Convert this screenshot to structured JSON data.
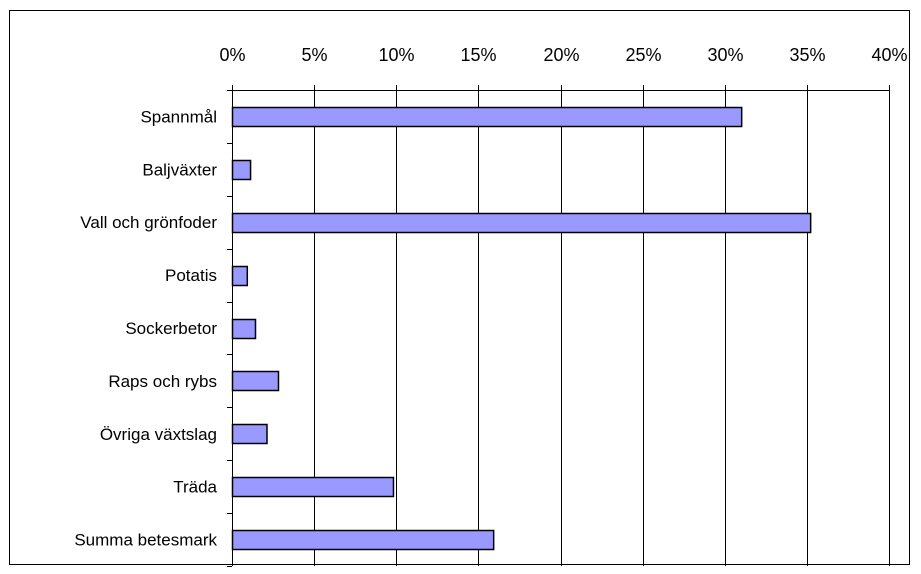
{
  "chart_data": {
    "type": "bar",
    "orientation": "horizontal",
    "title": "",
    "xlabel": "",
    "ylabel": "",
    "categories": [
      "Spannmål",
      "Baljväxter",
      "Vall och grönfoder",
      "Potatis",
      "Sockerbetor",
      "Raps och rybs",
      "Övriga växtslag",
      "Träda",
      "Summa betesmark"
    ],
    "values": [
      31.0,
      1.1,
      35.2,
      0.9,
      1.4,
      2.8,
      2.1,
      9.8,
      15.9
    ],
    "xlim": [
      0,
      40
    ],
    "x_ticks": [
      "0%",
      "5%",
      "10%",
      "15%",
      "20%",
      "25%",
      "30%",
      "35%",
      "40%"
    ],
    "x_axis_position": "top",
    "grid": true,
    "legend": "none",
    "bar_color": "#9999ff",
    "bar_edge_color": "#000000"
  }
}
